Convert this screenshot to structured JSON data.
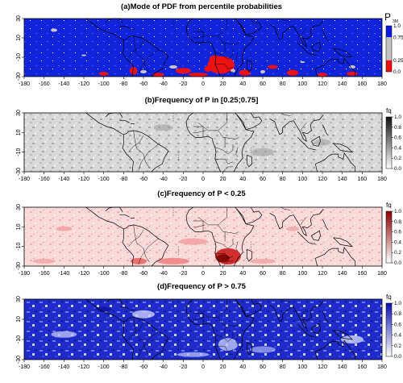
{
  "chart_data": [
    {
      "type": "heatmap",
      "title": "(a)Mode of PDF from percentile probabilities",
      "xticks": [
        -180,
        -160,
        -140,
        -120,
        -100,
        -80,
        -60,
        -40,
        -20,
        0,
        20,
        40,
        60,
        80,
        100,
        120,
        140,
        160,
        180
      ],
      "yticks": [
        -30,
        -10,
        10,
        30
      ],
      "xlim": [
        -180,
        180
      ],
      "ylim": [
        -30,
        30
      ],
      "legend_title": "P",
      "legend_subscript": "3M",
      "legend_ticks": [
        "1.0",
        "0.75",
        "0.25",
        "0.0"
      ],
      "colors": {
        "high": "#0b1de0",
        "mid": "#c4c4c4",
        "low": "#ee1010"
      }
    },
    {
      "type": "heatmap",
      "title": "(b)Frequency of P in [0.25;0.75]",
      "xticks": [
        -180,
        -160,
        -140,
        -120,
        -100,
        -80,
        -60,
        -40,
        -20,
        0,
        20,
        40,
        60,
        80,
        100,
        120,
        140,
        160,
        180
      ],
      "yticks": [
        -30,
        -10,
        10,
        30
      ],
      "xlim": [
        -180,
        180
      ],
      "ylim": [
        -30,
        30
      ],
      "legend_title": "fq",
      "legend_ticks": [
        "1.0",
        "0.8",
        "0.6",
        "0.4",
        "0.2",
        "0.0"
      ],
      "colors": {
        "scale_low": "#ffffff",
        "scale_high": "#111111"
      }
    },
    {
      "type": "heatmap",
      "title": "(c)Frequency of P < 0.25",
      "xticks": [
        -180,
        -160,
        -140,
        -120,
        -100,
        -80,
        -60,
        -40,
        -20,
        0,
        20,
        40,
        60,
        80,
        100,
        120,
        140,
        160,
        180
      ],
      "yticks": [
        -30,
        -10,
        10,
        30
      ],
      "xlim": [
        -180,
        180
      ],
      "ylim": [
        -30,
        30
      ],
      "legend_title": "fq",
      "legend_ticks": [
        "1.0",
        "0.8",
        "0.6",
        "0.4",
        "0.2",
        "0.0"
      ],
      "colors": {
        "scale_low": "#ffffff",
        "scale_high": "#8a0000"
      }
    },
    {
      "type": "heatmap",
      "title": "(d)Frequency of P > 0.75",
      "xticks": [
        -180,
        -160,
        -140,
        -120,
        -100,
        -80,
        -60,
        -40,
        -20,
        0,
        20,
        40,
        60,
        80,
        100,
        120,
        140,
        160,
        180
      ],
      "yticks": [
        -30,
        -10,
        10,
        30
      ],
      "xlim": [
        -180,
        180
      ],
      "ylim": [
        -30,
        30
      ],
      "legend_title": "fq",
      "legend_ticks": [
        "1.0",
        "0.8",
        "0.6",
        "0.4",
        "0.2",
        "0.0"
      ],
      "colors": {
        "scale_low": "#ffffff",
        "scale_high": "#0a10b0"
      }
    }
  ]
}
